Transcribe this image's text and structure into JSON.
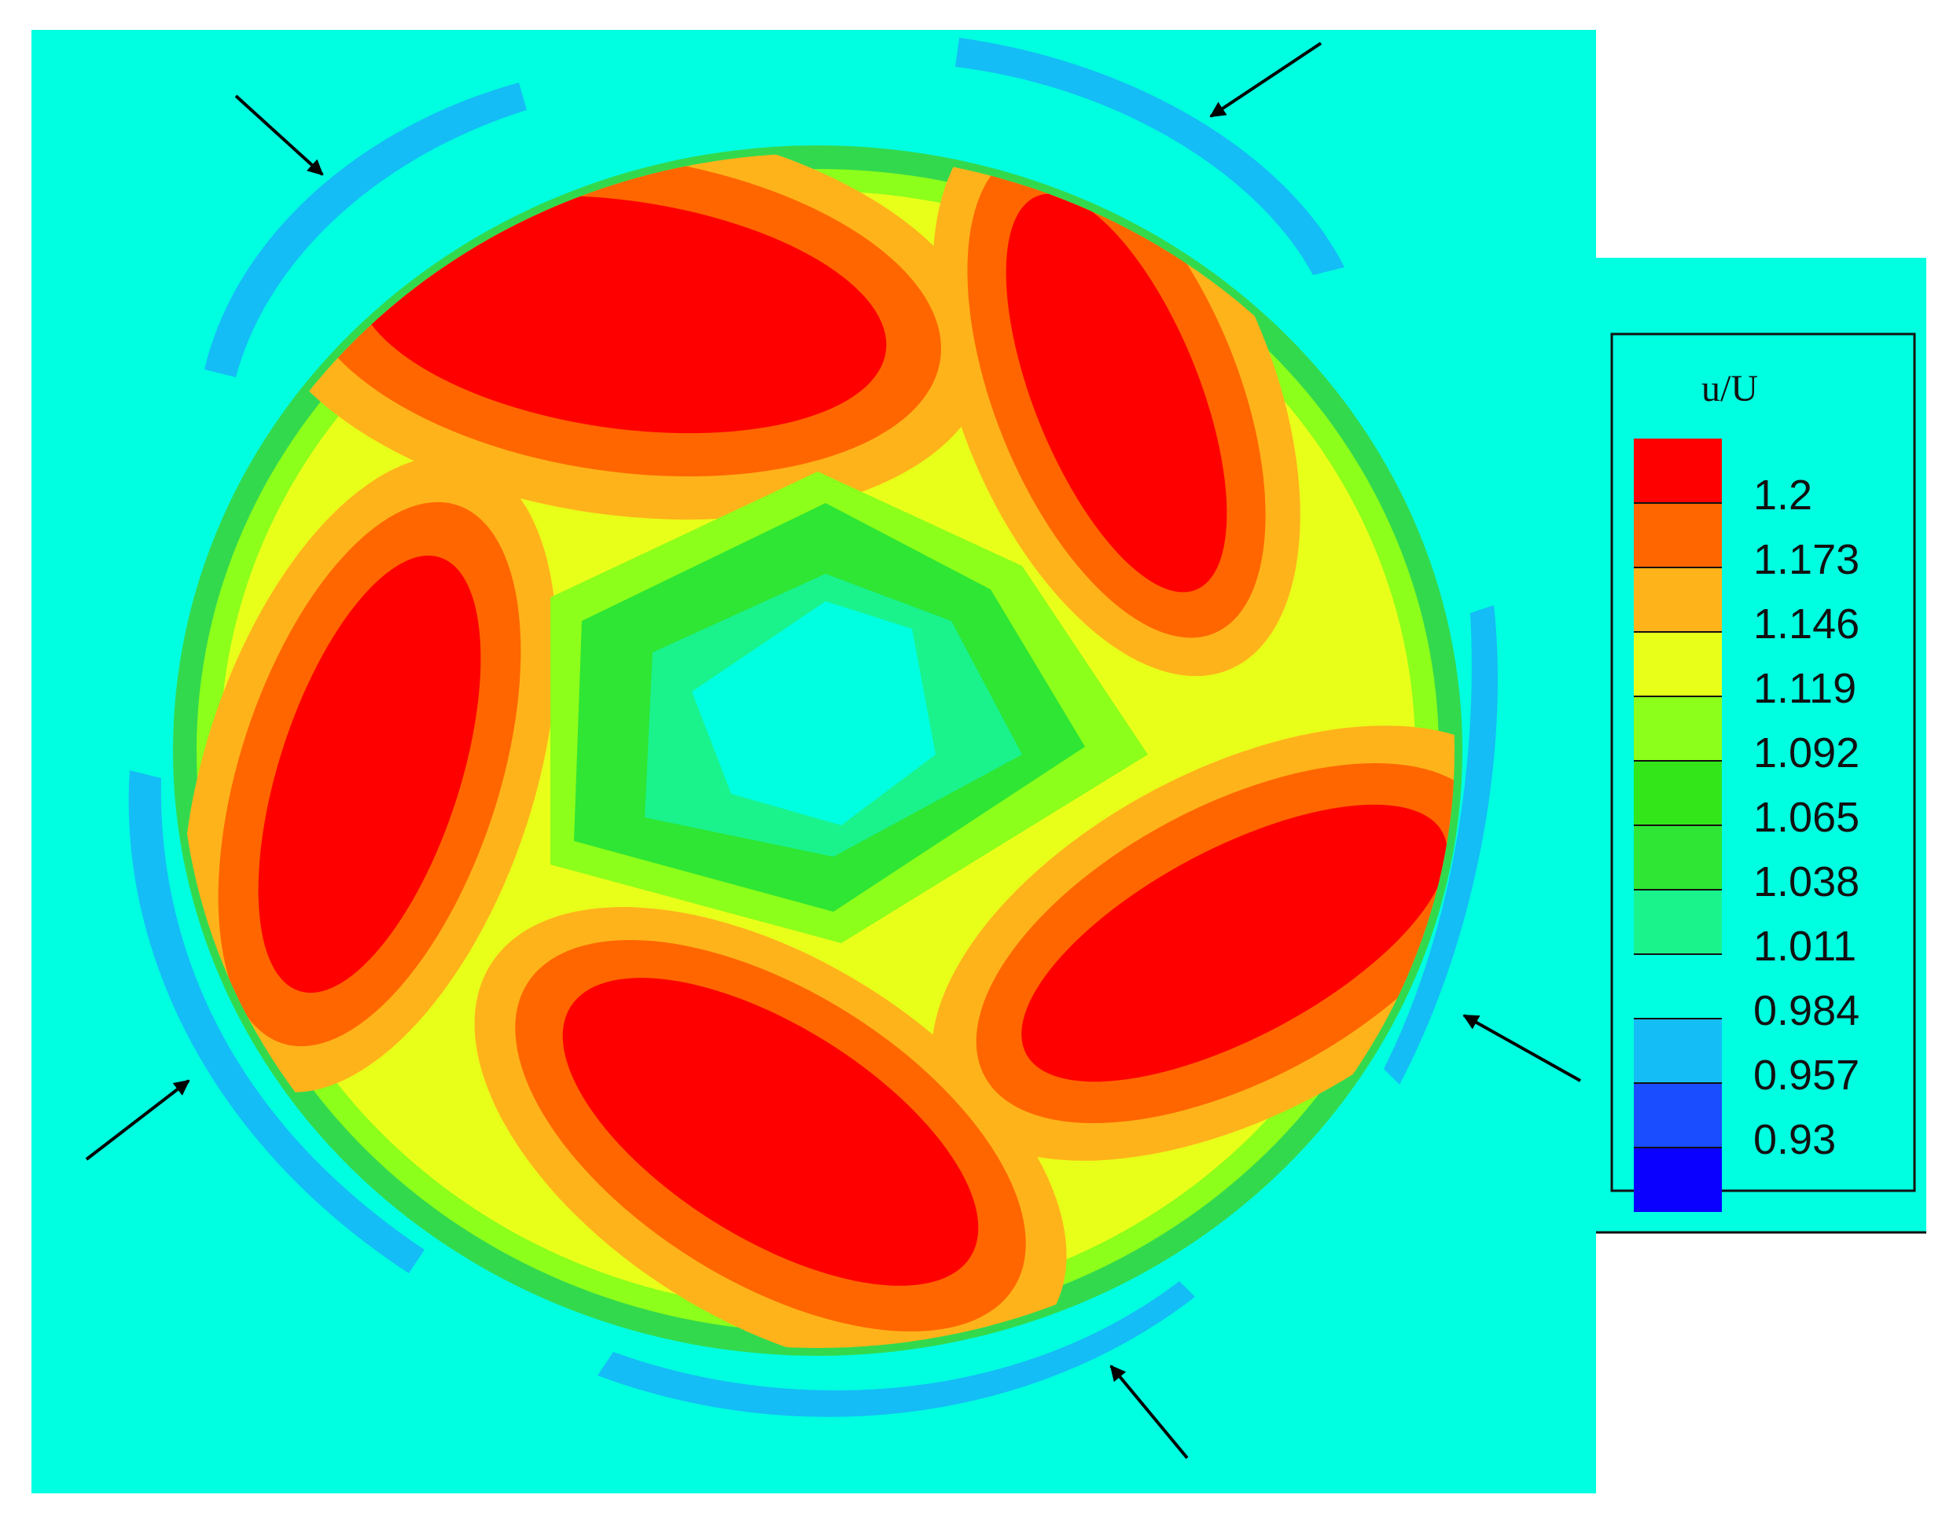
{
  "colors": {
    "background": "#00FFE0",
    "outer_band": "#14BDF5",
    "outer_green": "#33D94D",
    "lime": "#8CFF1A",
    "yellow": "#E8FF1A",
    "orange": "#FFB31A",
    "dark_orange": "#FF6600",
    "red": "#FF0000",
    "inner_green": "#2EE633",
    "inner_teal": "#1AF28C",
    "frame": "#111111",
    "arrow": "#000000",
    "legend_panel": "#00FFE0"
  },
  "legend": {
    "title": "u/U",
    "labels": [
      "1.2",
      "1.173",
      "1.146",
      "1.119",
      "1.092",
      "1.065",
      "1.038",
      "1.011",
      "0.984",
      "0.957",
      "0.93"
    ],
    "swatch_colors": [
      "#FF0000",
      "#FF6600",
      "#FFB31A",
      "#E8FF1A",
      "#8CFF1A",
      "#33E61A",
      "#2EE633",
      "#1AF28C",
      "#00FFE0",
      "#14BDF5",
      "#1A4DFF",
      "#0A00FF"
    ]
  },
  "annotations": {
    "arrow_count": 6,
    "arrow_meaning_icon": "arrow-icon"
  }
}
